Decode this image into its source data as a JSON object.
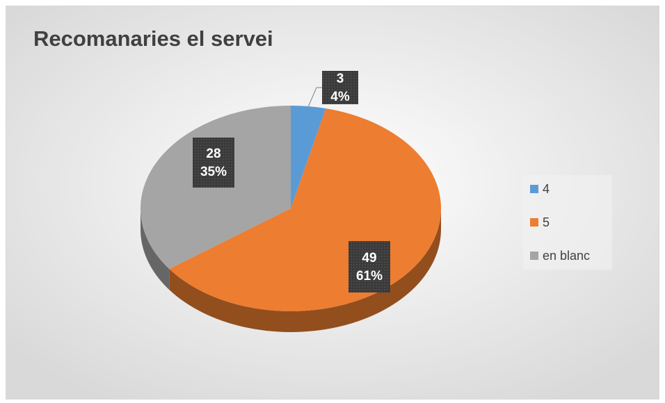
{
  "chart_data": {
    "type": "pie3d",
    "title": "Recomanaries el servei",
    "categories": [
      "4",
      "5",
      "en blanc"
    ],
    "values": [
      3,
      49,
      28
    ],
    "percent_labels": [
      "4%",
      "61%",
      "35%"
    ],
    "colors": [
      "#5b9bd5",
      "#ed7d31",
      "#a5a5a5"
    ],
    "legend": "right"
  }
}
